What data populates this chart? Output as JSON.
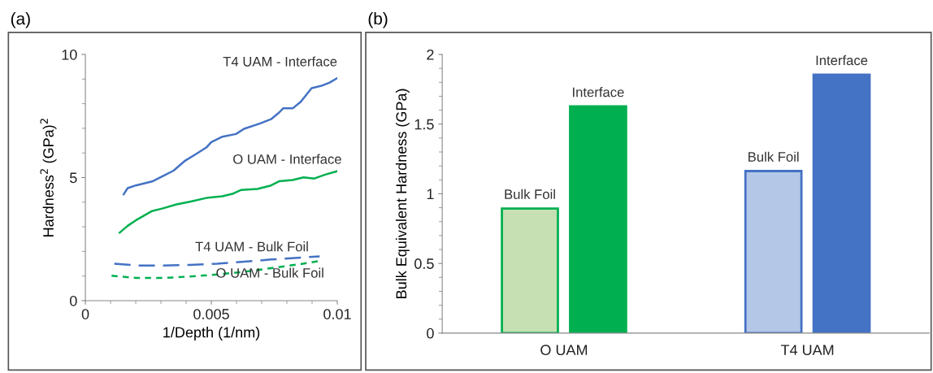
{
  "chart_data": [
    {
      "type": "line",
      "title": "(a)",
      "xlabel": "1/Depth (1/nm)",
      "ylabel": "Hardness$^{2}$ (GPa)$^{2}$",
      "xlim": [
        0,
        0.01
      ],
      "xticks": [
        0,
        0.005,
        0.01
      ],
      "ylim": [
        0,
        10
      ],
      "yticks": [
        0,
        5,
        10
      ],
      "grid": false,
      "legend": false,
      "marker": "none",
      "series": [
        {
          "name": "T4 UAM - Interface",
          "color": "#4472c4",
          "line_style": "solid",
          "x": [
            0.00152,
            0.00168,
            0.002,
            0.00265,
            0.00308,
            0.0035,
            0.00394,
            0.00437,
            0.0048,
            0.005,
            0.00544,
            0.00598,
            0.0063,
            0.00694,
            0.00737,
            0.00769,
            0.00785,
            0.00823,
            0.00855,
            0.00898,
            0.00941,
            0.00968,
            0.01
          ],
          "values": [
            4.32,
            4.57,
            4.68,
            4.84,
            5.06,
            5.28,
            5.67,
            5.94,
            6.22,
            6.44,
            6.66,
            6.77,
            6.98,
            7.2,
            7.37,
            7.64,
            7.81,
            7.81,
            8.08,
            8.63,
            8.74,
            8.85,
            9.04
          ]
        },
        {
          "name": "O UAM - Interface",
          "color": "#00b050",
          "line_style": "solid",
          "x": [
            0.00136,
            0.00168,
            0.002,
            0.00265,
            0.00308,
            0.00362,
            0.00415,
            0.0048,
            0.00544,
            0.00587,
            0.00619,
            0.00683,
            0.00737,
            0.00769,
            0.00823,
            0.00866,
            0.00909,
            0.00952,
            0.01
          ],
          "values": [
            2.76,
            3.04,
            3.26,
            3.64,
            3.75,
            3.91,
            4.02,
            4.17,
            4.24,
            4.35,
            4.5,
            4.54,
            4.68,
            4.85,
            4.9,
            5.01,
            4.96,
            5.12,
            5.26
          ]
        },
        {
          "name": "T4 UAM - Bulk Foil",
          "color": "#4472c4",
          "line_style": "dashed",
          "x": [
            0.00115,
            0.002,
            0.00308,
            0.00415,
            0.00523,
            0.0063,
            0.00737,
            0.00844,
            0.0093
          ],
          "values": [
            1.5,
            1.43,
            1.43,
            1.45,
            1.5,
            1.58,
            1.67,
            1.74,
            1.8
          ]
        },
        {
          "name": "O UAM - Bulk Foil",
          "color": "#00b050",
          "line_style": "dotted",
          "x": [
            0.00104,
            0.002,
            0.00308,
            0.00415,
            0.00523,
            0.0063,
            0.00737,
            0.00844,
            0.0093
          ],
          "values": [
            1.01,
            0.92,
            0.92,
            0.98,
            1.06,
            1.17,
            1.32,
            1.47,
            1.61
          ]
        }
      ]
    },
    {
      "type": "bar",
      "title": "(b)",
      "ylabel": "Bulk Equivalent Hardness (GPa)",
      "categories": [
        "O UAM",
        "T4 UAM"
      ],
      "ylim": [
        0,
        2
      ],
      "yticks": [
        0,
        0.5,
        1,
        1.5,
        2
      ],
      "grid": false,
      "legend": false,
      "series": [
        {
          "name": "Bulk Foil",
          "colors": [
            "#c6e0b4",
            "#b4c7e7"
          ],
          "values": [
            0.894,
            1.163
          ]
        },
        {
          "name": "Interface",
          "colors": [
            "#00b050",
            "#4472c4"
          ],
          "values": [
            1.627,
            1.855
          ]
        }
      ]
    }
  ]
}
